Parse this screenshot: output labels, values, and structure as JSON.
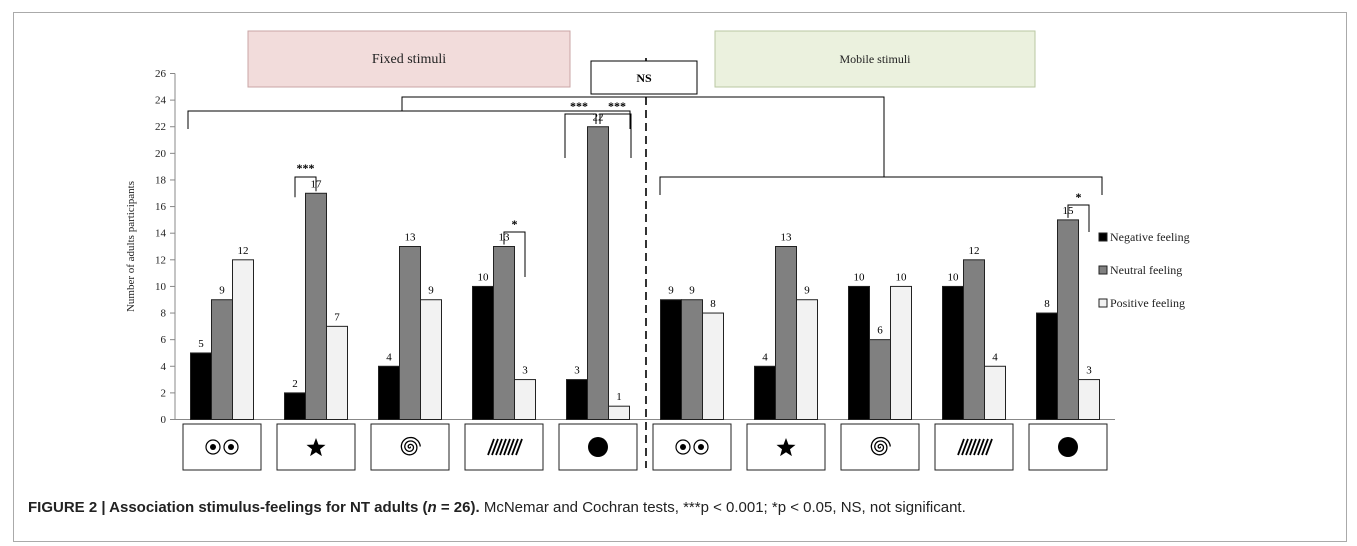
{
  "chart_data": {
    "type": "bar",
    "ylabel": "Number of adults participants",
    "ylim": [
      0,
      26
    ],
    "yticks": [
      0,
      2,
      4,
      6,
      8,
      10,
      12,
      14,
      16,
      18,
      20,
      22,
      24,
      26
    ],
    "groups": [
      {
        "label": "Fixed stimuli",
        "categories": [
          "eyes",
          "star",
          "spiral",
          "stripes",
          "dot"
        ]
      },
      {
        "label": "Mobile stimuli",
        "categories": [
          "eyes",
          "star",
          "spiral",
          "stripes",
          "dot"
        ]
      }
    ],
    "series": [
      {
        "name": "Negative feeling",
        "color": "#000000",
        "values": [
          5,
          2,
          4,
          10,
          3,
          9,
          4,
          10,
          10,
          8
        ]
      },
      {
        "name": "Neutral feeling",
        "color": "#808080",
        "values": [
          9,
          17,
          13,
          13,
          22,
          9,
          13,
          6,
          12,
          15
        ]
      },
      {
        "name": "Positive feeling",
        "color": "#f2f2f2",
        "values": [
          12,
          7,
          9,
          3,
          1,
          8,
          9,
          10,
          4,
          3
        ]
      }
    ],
    "category_icons": [
      "eyes-icon",
      "star-icon",
      "spiral-icon",
      "stripes-icon",
      "dot-icon",
      "eyes-icon",
      "star-icon",
      "spiral-icon",
      "stripes-icon",
      "dot-icon"
    ],
    "legend_position": "right",
    "ns_label": "NS",
    "significance": {
      "star_neg_neu": "***",
      "stripes_neu_pos": "*",
      "dot_neg_neu": "***",
      "dot_neu_pos": "***",
      "mobile_dot_neu_pos": "*"
    }
  },
  "caption": {
    "label": "FIGURE 2 | Association stimulus-feelings for NT adults (",
    "n_symbol": "n",
    "label_end": " = 26).",
    "text": " McNemar and Cochran tests, ***p < 0.001; *p < 0.05, NS, not significant."
  }
}
